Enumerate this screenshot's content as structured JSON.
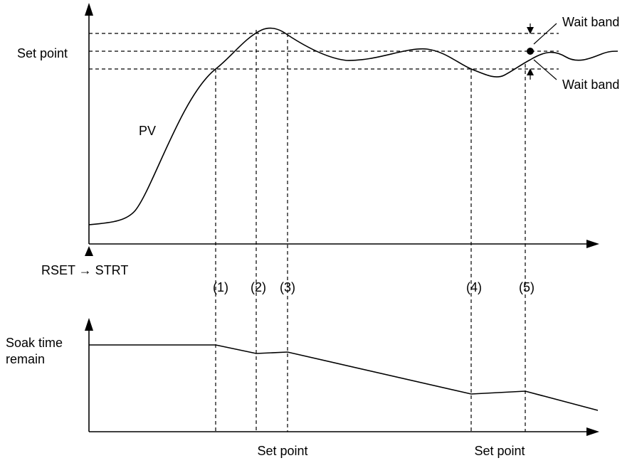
{
  "labels": {
    "wait_band_upper": "Wait band",
    "wait_band_lower": "Wait band",
    "set_point": "Set point",
    "pv": "PV",
    "start": "RSET → STRT",
    "markers": [
      "(1)",
      "(2)",
      "(3)",
      "(4)",
      "(5)"
    ],
    "soak_time": [
      "Soak time",
      "remain"
    ],
    "bottom_set_points": [
      "Set point",
      "Set point"
    ]
  }
}
